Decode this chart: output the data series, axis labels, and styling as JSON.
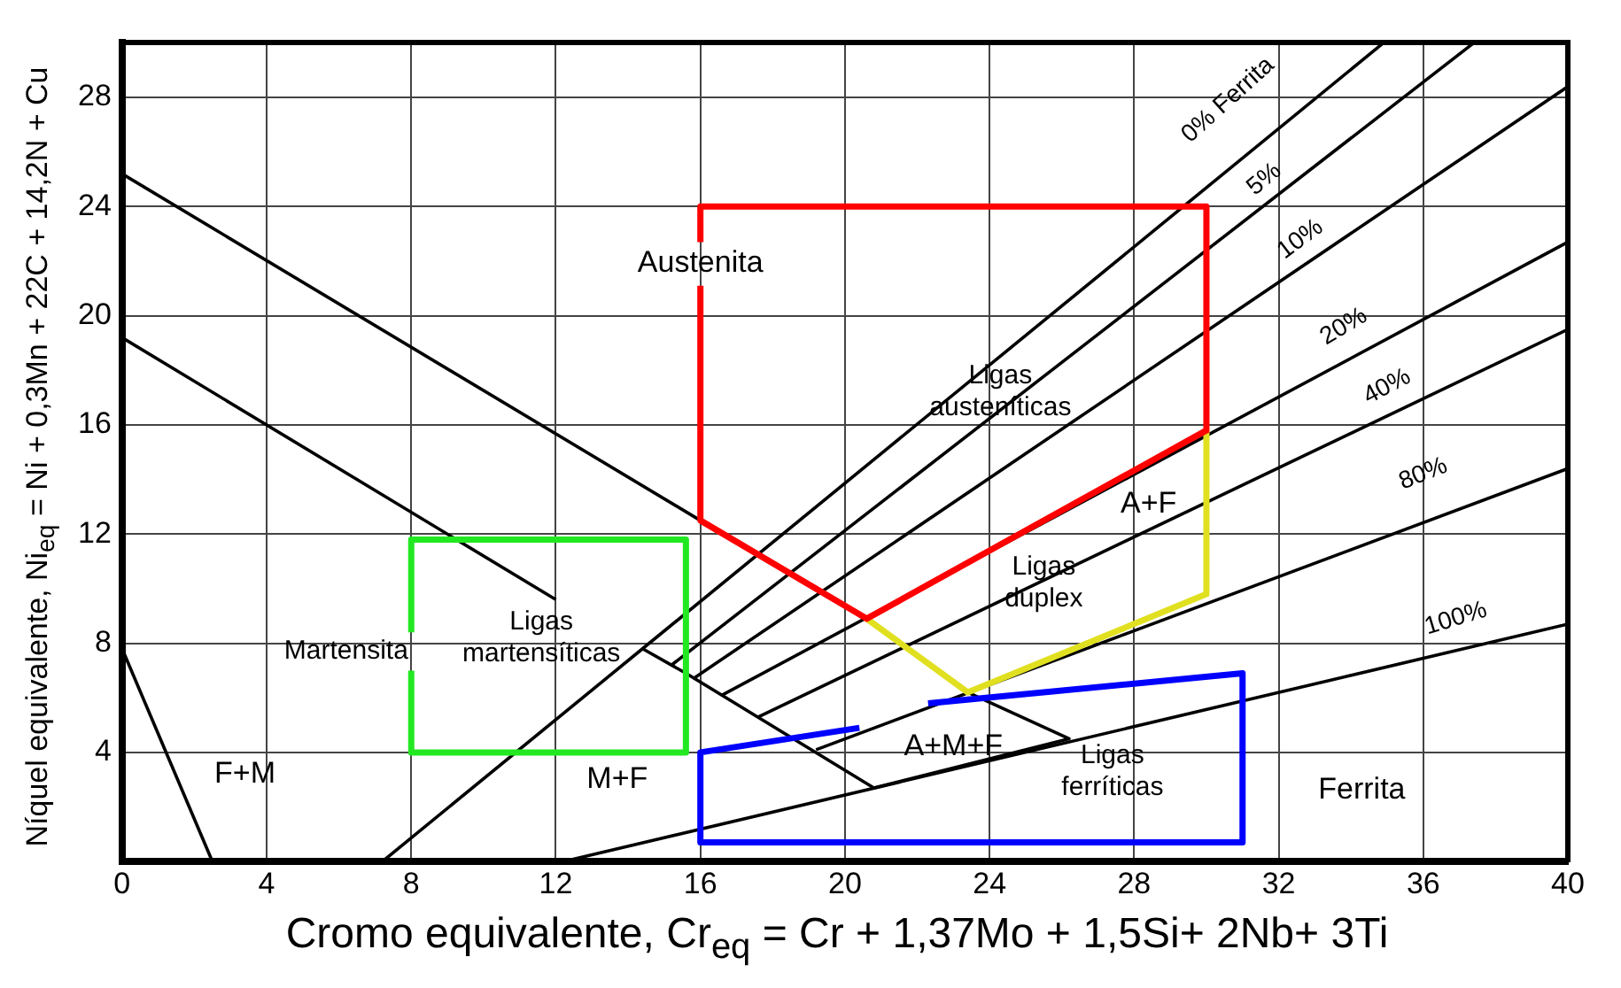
{
  "chart_data": {
    "type": "line",
    "xlabel": "Cromo equivalente, Cr$_{eq}$ = Cr + 1,37Mo + 1,5Si+ 2Nb+ 3Ti",
    "ylabel": "Níquel equivalente, Ni$_{eq}$ = Ni + 0,3Mn + 22C + 14,2N + Cu",
    "xlim": [
      0,
      40
    ],
    "ylim": [
      0,
      30
    ],
    "xticks": [
      0,
      4,
      8,
      12,
      16,
      20,
      24,
      28,
      32,
      36,
      40
    ],
    "yticks": [
      4,
      8,
      12,
      16,
      20,
      24,
      28
    ],
    "grid": true,
    "legend": false,
    "marker": "none",
    "series": [
      {
        "color": "#000000",
        "x": [
          0,
          16
        ],
        "values": [
          25.2,
          12.5
        ]
      },
      {
        "color": "#000000",
        "x": [
          23.4,
          26.2,
          20.8,
          15.6,
          14.4
        ],
        "values": [
          6.2,
          4.5,
          2.7,
          6.9,
          7.8
        ]
      },
      {
        "color": "#000000",
        "x": [
          0,
          12
        ],
        "values": [
          19.2,
          9.6
        ]
      },
      {
        "color": "#000000",
        "x": [
          0,
          2.5
        ],
        "values": [
          7.8,
          0
        ]
      },
      {
        "color": "#000000",
        "x": [
          7.2,
          14.4,
          34.9
        ],
        "values": [
          0,
          7.8,
          30
        ]
      },
      {
        "color": "#000000",
        "x": [
          15.2,
          37.4
        ],
        "values": [
          7.2,
          30
        ]
      },
      {
        "color": "#000000",
        "x": [
          15.8,
          40
        ],
        "values": [
          6.7,
          28.4
        ]
      },
      {
        "color": "#000000",
        "x": [
          16.6,
          40
        ],
        "values": [
          6.1,
          22.7
        ]
      },
      {
        "color": "#000000",
        "x": [
          17.6,
          40
        ],
        "values": [
          5.3,
          19.5
        ]
      },
      {
        "color": "#000000",
        "x": [
          19.2,
          40
        ],
        "values": [
          4.1,
          14.4
        ]
      },
      {
        "color": "#000000",
        "x": [
          12.2,
          40
        ],
        "values": [
          0,
          8.7
        ]
      },
      {
        "color": "#ff0000",
        "x": [
          16,
          16,
          30,
          30,
          20.6,
          16,
          16
        ],
        "values": [
          22.7,
          24,
          24,
          15.8,
          8.9,
          12.5,
          21.1
        ]
      },
      {
        "color": "#e0e020",
        "x": [
          30,
          30,
          23.4,
          20.6
        ],
        "values": [
          15.8,
          9.8,
          6.2,
          8.9
        ]
      },
      {
        "color": "#0000ff",
        "x": [
          20.4,
          21.4,
          22.3,
          31,
          31,
          16,
          16,
          20.4
        ],
        "values": [
          4.9,
          null,
          5.8,
          6.9,
          0.7,
          0.7,
          4.0,
          4.9
        ]
      },
      {
        "color": "#22e822",
        "x": [
          8,
          8,
          15.6,
          15.6,
          8,
          8
        ],
        "values": [
          8.4,
          11.8,
          11.8,
          4,
          4,
          7.0
        ]
      }
    ],
    "annotations": [
      "Austenita",
      "Ligas\nausteníticas",
      "A+F",
      "Ligas\nduplex",
      "Martensita",
      "Ligas\nmartensíticas",
      "F+M",
      "M+F",
      "A+M+F",
      "Ligas\nferríticas",
      "Ferrita",
      "0% Ferrita",
      "5%",
      "10%",
      "20%",
      "40%",
      "80%",
      "100%"
    ]
  }
}
